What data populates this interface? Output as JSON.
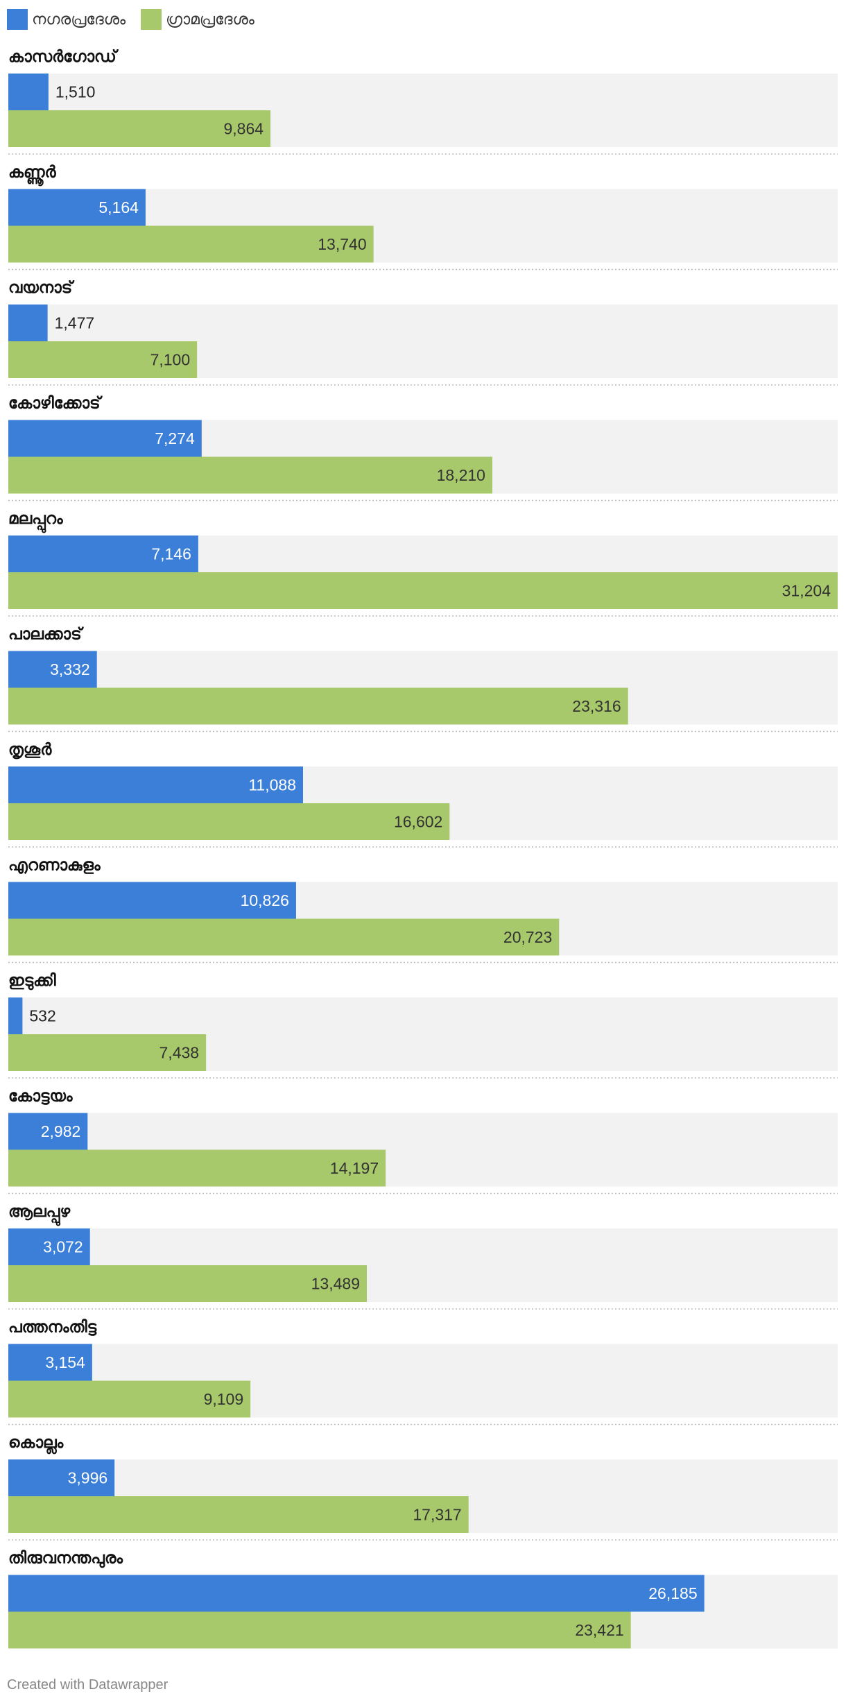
{
  "chart_data": {
    "type": "bar",
    "orientation": "horizontal",
    "categories": [
      "കാസർഗോഡ്",
      "കണ്ണൂർ",
      "വയനാട്",
      "കോഴിക്കോട്",
      "മലപ്പുറം",
      "പാലക്കാട്",
      "തൃശൂർ",
      "എറണാകുളം",
      "ഇടുക്കി",
      "കോട്ടയം",
      "ആലപ്പുഴ",
      "പത്തനംതിട്ട",
      "കൊല്ലം",
      "തിരുവനന്തപുരം"
    ],
    "series": [
      {
        "name": "നഗരപ്രദേശം",
        "color": "#3b7fd9",
        "values": [
          1510,
          5164,
          1477,
          7274,
          7146,
          3332,
          11088,
          10826,
          532,
          2982,
          3072,
          3154,
          3996,
          26185
        ]
      },
      {
        "name": "ഗ്രാമപ്രദേശം",
        "color": "#a8c96b",
        "values": [
          9864,
          13740,
          7100,
          18210,
          31204,
          23316,
          16602,
          20723,
          7438,
          14197,
          13489,
          9109,
          17317,
          23421
        ]
      }
    ],
    "xlim": [
      0,
      31204
    ],
    "legend": "top-left",
    "grid": false
  },
  "footer": "Created with Datawrapper"
}
